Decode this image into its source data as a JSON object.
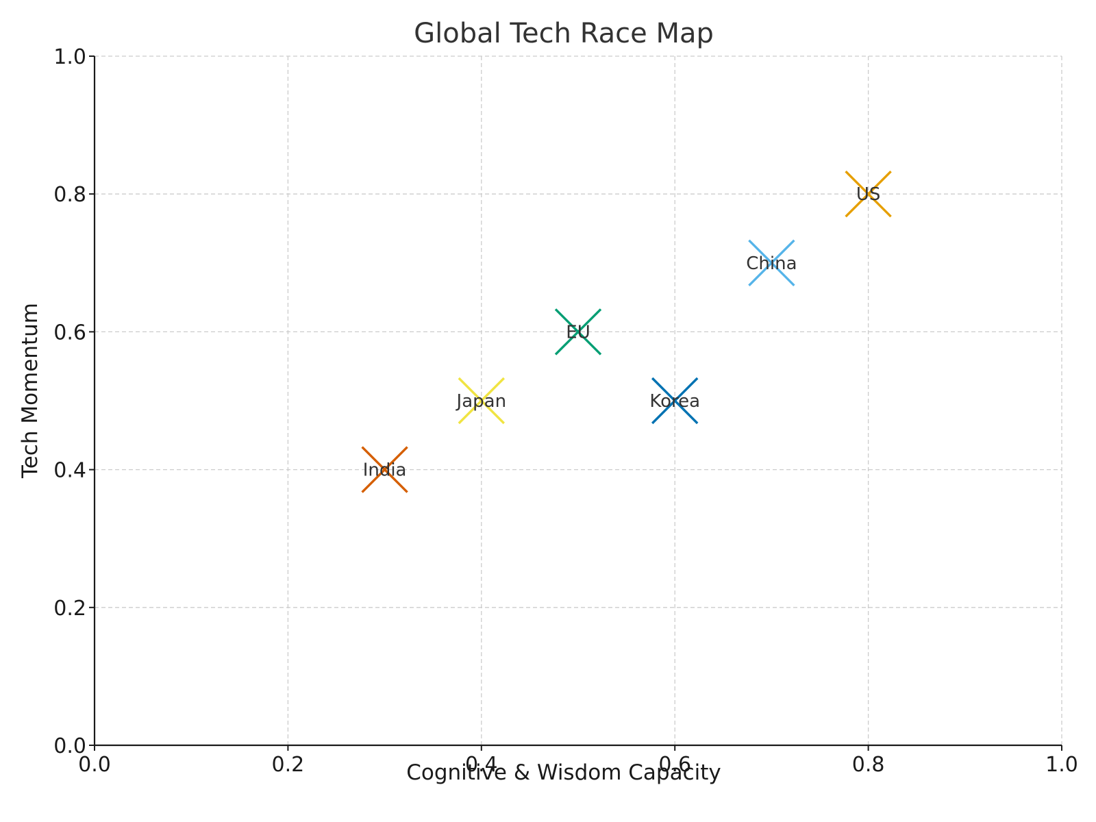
{
  "chart_data": {
    "type": "scatter",
    "title": "Global Tech Race Map",
    "xlabel": "Cognitive & Wisdom Capacity",
    "ylabel": "Tech Momentum",
    "xlim": [
      0,
      1
    ],
    "ylim": [
      0,
      1
    ],
    "xticks": [
      "0.0",
      "0.2",
      "0.4",
      "0.6",
      "0.8",
      "1.0"
    ],
    "yticks": [
      "0.0",
      "0.2",
      "0.4",
      "0.6",
      "0.8",
      "1.0"
    ],
    "grid": true,
    "marker": "x",
    "points": [
      {
        "label": "US",
        "x": 0.8,
        "y": 0.8,
        "color": "#E69F00"
      },
      {
        "label": "China",
        "x": 0.7,
        "y": 0.7,
        "color": "#56B4E9"
      },
      {
        "label": "EU",
        "x": 0.5,
        "y": 0.6,
        "color": "#009E73"
      },
      {
        "label": "Japan",
        "x": 0.4,
        "y": 0.5,
        "color": "#F0E442"
      },
      {
        "label": "Korea",
        "x": 0.6,
        "y": 0.5,
        "color": "#0072B2"
      },
      {
        "label": "India",
        "x": 0.3,
        "y": 0.4,
        "color": "#D55E00"
      }
    ]
  }
}
